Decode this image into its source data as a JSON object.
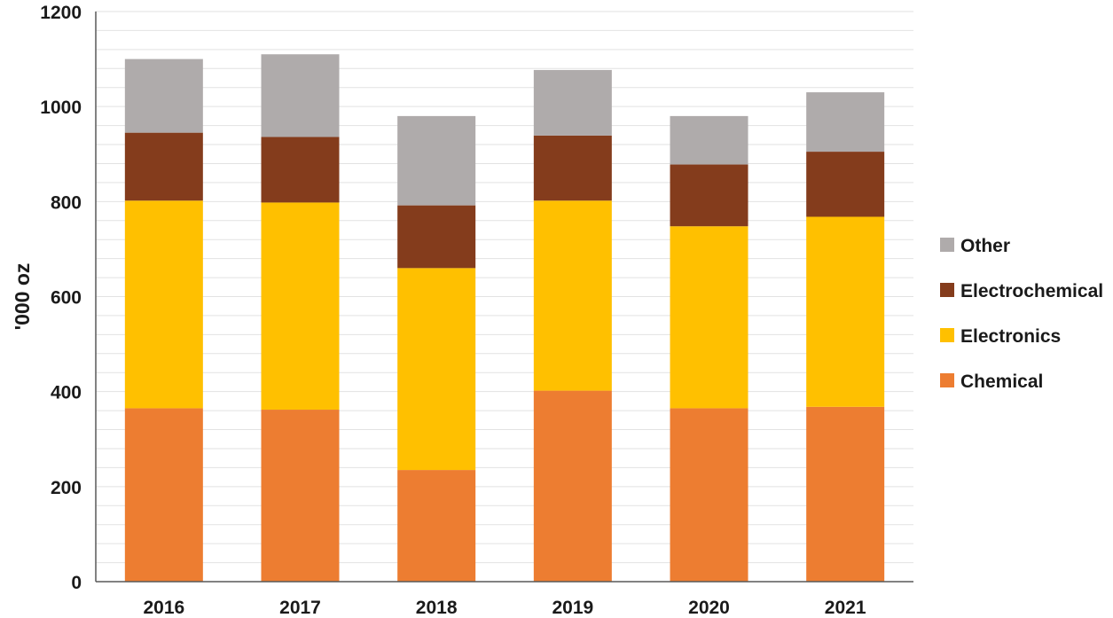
{
  "chart_data": {
    "type": "bar",
    "stacked": true,
    "title": "",
    "xlabel": "",
    "ylabel": "'000 oz",
    "ylim": [
      0,
      1200
    ],
    "yticks": [
      0,
      200,
      400,
      600,
      800,
      1000,
      1200
    ],
    "grid": true,
    "legend_position": "right",
    "categories": [
      "2016",
      "2017",
      "2018",
      "2019",
      "2020",
      "2021"
    ],
    "series": [
      {
        "name": "Chemical",
        "color": "#ED7D31",
        "values": [
          365,
          362,
          235,
          402,
          365,
          368
        ]
      },
      {
        "name": "Electronics",
        "color": "#FFC000",
        "values": [
          437,
          436,
          425,
          400,
          383,
          400
        ]
      },
      {
        "name": "Electrochemical",
        "color": "#843C1C",
        "values": [
          143,
          138,
          132,
          137,
          130,
          137
        ]
      },
      {
        "name": "Other",
        "color": "#AFABAB",
        "values": [
          155,
          174,
          188,
          138,
          102,
          125
        ]
      }
    ]
  }
}
